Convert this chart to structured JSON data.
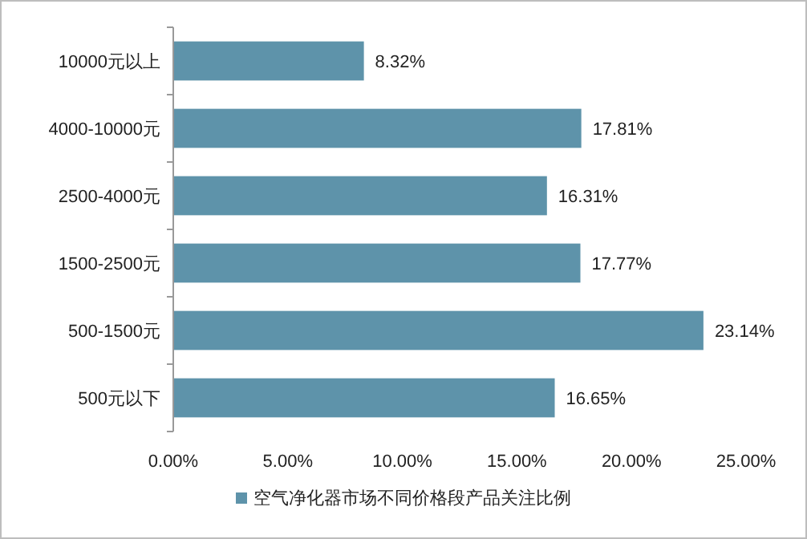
{
  "chart_data": {
    "type": "bar",
    "orientation": "horizontal",
    "categories": [
      "10000元以上",
      "4000-10000元",
      "2500-4000元",
      "1500-2500元",
      "500-1500元",
      "500元以下"
    ],
    "series": [
      {
        "name": "空气净化器市场不同价格段产品关注比例",
        "color": "#5e93aa",
        "values": [
          8.32,
          17.81,
          16.31,
          17.77,
          23.14,
          16.65
        ],
        "value_labels": [
          "8.32%",
          "17.81%",
          "16.31%",
          "17.77%",
          "23.14%",
          "16.65%"
        ]
      }
    ],
    "xlim": [
      0,
      25
    ],
    "xticks": [
      {
        "value": 0,
        "label": "0.00%"
      },
      {
        "value": 5,
        "label": "5.00%"
      },
      {
        "value": 10,
        "label": "10.00%"
      },
      {
        "value": 15,
        "label": "15.00%"
      },
      {
        "value": 20,
        "label": "20.00%"
      },
      {
        "value": 25,
        "label": "25.00%"
      }
    ],
    "legend": "bottom"
  }
}
